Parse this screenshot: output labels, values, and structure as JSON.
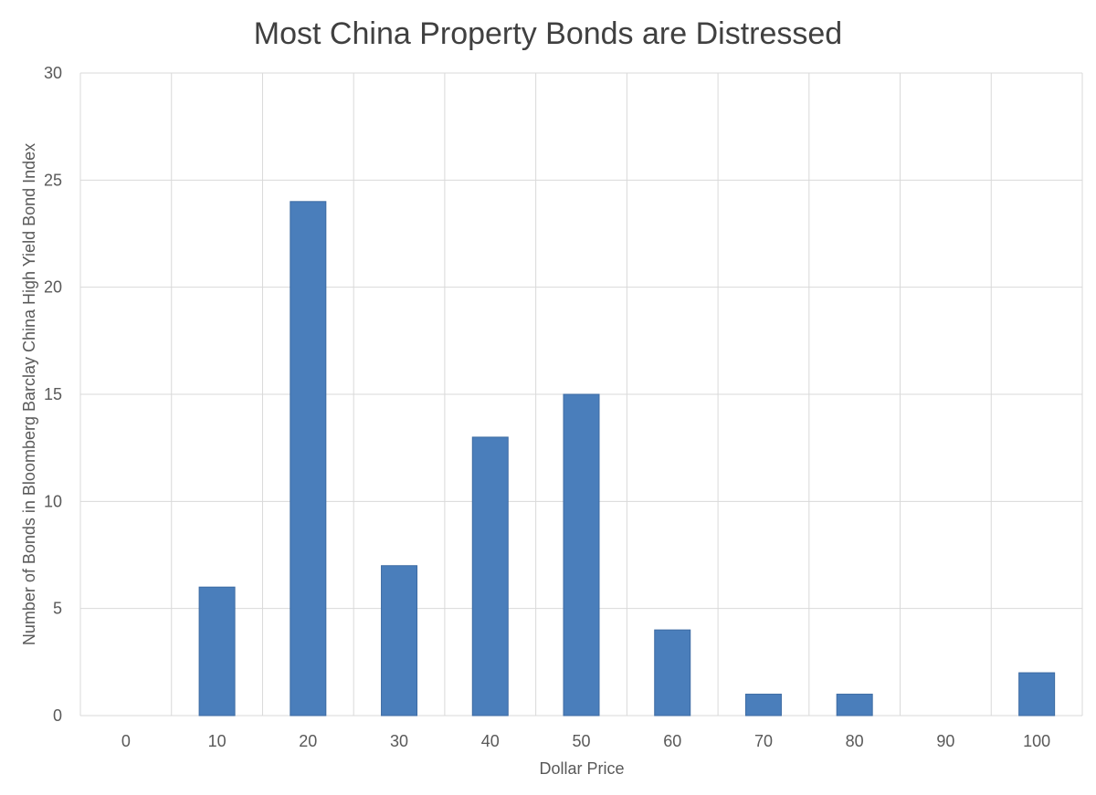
{
  "chart_data": {
    "type": "bar",
    "title": "Most China Property Bonds are Distressed",
    "xlabel": "Dollar Price",
    "ylabel": "Number of Bonds in Bloomberg Barclay China High Yield Bond Index",
    "categories": [
      "0",
      "10",
      "20",
      "30",
      "40",
      "50",
      "60",
      "70",
      "80",
      "90",
      "100"
    ],
    "values": [
      0,
      6,
      24,
      7,
      13,
      15,
      4,
      1,
      1,
      0,
      2
    ],
    "ylim": [
      0,
      30
    ],
    "yticks": [
      "0",
      "5",
      "10",
      "15",
      "20",
      "25",
      "30"
    ],
    "grid": true,
    "legend": "none",
    "colors": {
      "bar": "#4a7ebb",
      "bar_edge": "#3d6ba3",
      "grid": "#d9d9d9",
      "text": "#595959",
      "title": "#404040"
    }
  }
}
